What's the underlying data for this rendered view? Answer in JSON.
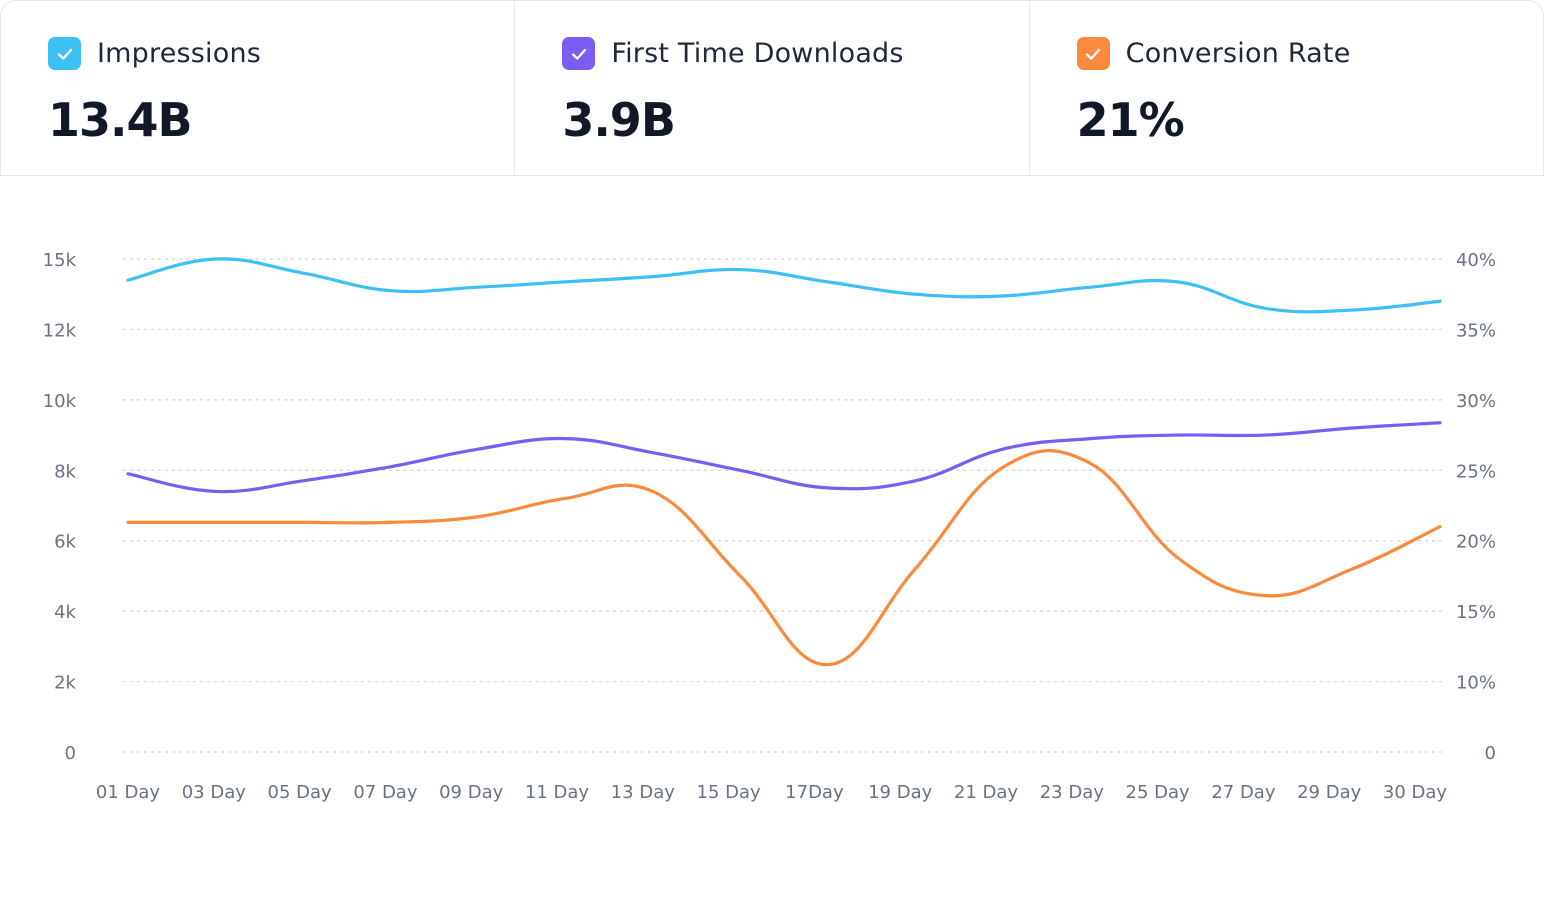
{
  "stats": [
    {
      "label": "Impressions",
      "value": "13.4B",
      "color": "#3cc0f5"
    },
    {
      "label": "First Time Downloads",
      "value": "3.9B",
      "color": "#7b5cf5"
    },
    {
      "label": "Conversion Rate",
      "value": "21%",
      "color": "#fb8a3c"
    }
  ],
  "chart_data": {
    "type": "line",
    "categories": [
      "01 Day",
      "03 Day",
      "05 Day",
      "07  Day",
      "09 Day",
      "11 Day",
      "13 Day",
      "15 Day",
      "17Day",
      "19 Day",
      "21  Day",
      "23 Day",
      "25 Day",
      "27 Day",
      "29 Day",
      "30 Day"
    ],
    "y_left": {
      "ticks": [
        "0",
        "2k",
        "4k",
        "6k",
        "8k",
        "10k",
        "12k",
        "15k"
      ],
      "ylim": [
        0,
        14000
      ]
    },
    "y_right": {
      "ticks": [
        "0",
        "10%",
        "15%",
        "20%",
        "25%",
        "30%",
        "35%",
        "40%"
      ],
      "ylim": [
        0,
        40
      ]
    },
    "grid": true,
    "series": [
      {
        "name": "Impressions",
        "axis": "left",
        "color": "#3cc0f5",
        "values": [
          13400,
          14000,
          13600,
          13100,
          13200,
          13350,
          13500,
          13700,
          13350,
          13000,
          12950,
          13200,
          13350,
          12600,
          12550,
          12800
        ]
      },
      {
        "name": "First Time Downloads",
        "axis": "left",
        "color": "#7b5cf5",
        "values": [
          7900,
          7400,
          7700,
          8100,
          8600,
          8900,
          8500,
          8000,
          7500,
          7700,
          8600,
          8900,
          9000,
          9000,
          9200,
          9350
        ]
      },
      {
        "name": "Conversion Rate",
        "axis": "right",
        "color": "#fb8a3c",
        "values": [
          21.3,
          21.3,
          21.3,
          21.3,
          21.7,
          23.0,
          23.5,
          17.5,
          11.2,
          18.0,
          25.2,
          25.5,
          18.8,
          16.1,
          18.0,
          21.0
        ]
      }
    ]
  }
}
